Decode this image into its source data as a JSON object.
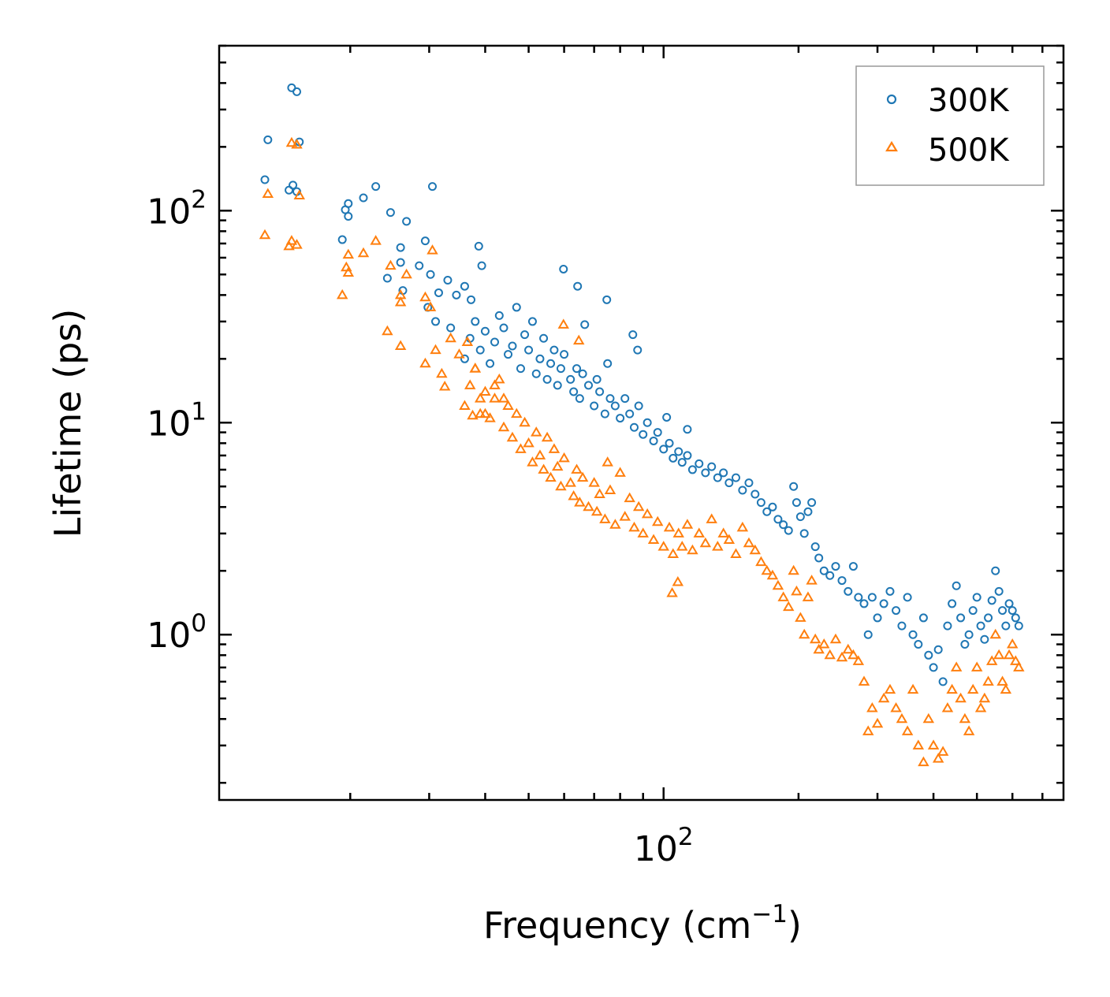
{
  "chart_data": {
    "type": "scatter",
    "title": "",
    "xlabel": "Frequency (cm",
    "xlabel_sup": "−1",
    "xlabel_end": ")",
    "ylabel": "Lifetime (ps)",
    "xscale": "log",
    "yscale": "log",
    "xlim": [
      10.2,
      780
    ],
    "ylim": [
      0.166,
      600
    ],
    "grid": false,
    "legend_position": "top-right",
    "xticks": [
      {
        "value": 100,
        "base": "10",
        "exp": "2"
      }
    ],
    "yticks": [
      {
        "value": 1,
        "base": "10",
        "exp": "0"
      },
      {
        "value": 10,
        "base": "10",
        "exp": "1"
      },
      {
        "value": 100,
        "base": "10",
        "exp": "2"
      }
    ],
    "series": [
      {
        "name": "300K",
        "color": "#1f77b4",
        "marker": "circle",
        "points": [
          [
            14.8,
            380
          ],
          [
            15.2,
            364
          ],
          [
            13.1,
            216
          ],
          [
            15.4,
            211
          ],
          [
            12.9,
            140
          ],
          [
            14.6,
            125
          ],
          [
            14.9,
            132
          ],
          [
            15.2,
            123
          ],
          [
            19.5,
            101
          ],
          [
            19.8,
            108
          ],
          [
            19.8,
            94
          ],
          [
            21.4,
            115
          ],
          [
            22.8,
            130
          ],
          [
            24.6,
            98
          ],
          [
            26.7,
            89
          ],
          [
            30.5,
            130
          ],
          [
            19.2,
            73
          ],
          [
            25.9,
            67
          ],
          [
            25.9,
            57
          ],
          [
            29.4,
            72
          ],
          [
            38.7,
            68
          ],
          [
            39.3,
            55
          ],
          [
            59.8,
            53
          ],
          [
            64.3,
            44
          ],
          [
            66.7,
            29
          ],
          [
            74.7,
            38
          ],
          [
            85.4,
            26
          ],
          [
            87.5,
            22
          ],
          [
            101.6,
            10.6
          ],
          [
            113,
            9.3
          ],
          [
            24.2,
            48
          ],
          [
            26.2,
            42
          ],
          [
            28.5,
            55
          ],
          [
            30.2,
            50
          ],
          [
            31.5,
            41
          ],
          [
            33,
            47
          ],
          [
            34.5,
            40
          ],
          [
            36,
            44
          ],
          [
            37.2,
            38
          ],
          [
            29.8,
            35
          ],
          [
            31,
            30
          ],
          [
            33.5,
            28
          ],
          [
            36,
            20
          ],
          [
            37,
            25
          ],
          [
            38,
            30
          ],
          [
            39,
            22
          ],
          [
            40,
            27
          ],
          [
            41,
            19
          ],
          [
            42,
            24
          ],
          [
            43,
            32
          ],
          [
            44,
            28
          ],
          [
            45,
            21
          ],
          [
            46,
            23
          ],
          [
            47,
            35
          ],
          [
            48,
            18
          ],
          [
            49,
            26
          ],
          [
            50,
            22
          ],
          [
            51,
            30
          ],
          [
            52,
            17
          ],
          [
            53,
            20
          ],
          [
            54,
            25
          ],
          [
            55,
            16
          ],
          [
            56,
            19
          ],
          [
            57,
            22
          ],
          [
            58,
            15
          ],
          [
            59,
            18
          ],
          [
            60,
            21
          ],
          [
            62,
            16
          ],
          [
            63,
            14
          ],
          [
            64,
            18
          ],
          [
            65,
            13
          ],
          [
            66,
            17
          ],
          [
            68,
            15
          ],
          [
            70,
            12
          ],
          [
            71,
            16
          ],
          [
            72,
            14
          ],
          [
            74,
            11
          ],
          [
            75,
            19
          ],
          [
            76,
            13
          ],
          [
            78,
            12
          ],
          [
            80,
            10.5
          ],
          [
            82,
            13
          ],
          [
            84,
            11
          ],
          [
            86,
            9.5
          ],
          [
            88,
            12
          ],
          [
            90,
            8.8
          ],
          [
            92,
            10
          ],
          [
            95,
            8.2
          ],
          [
            97,
            9
          ],
          [
            100,
            7.5
          ],
          [
            103,
            8
          ],
          [
            105,
            6.8
          ],
          [
            108,
            7.3
          ],
          [
            110,
            6.5
          ],
          [
            113,
            7
          ],
          [
            116,
            6
          ],
          [
            120,
            6.4
          ],
          [
            124,
            5.8
          ],
          [
            128,
            6.2
          ],
          [
            132,
            5.5
          ],
          [
            136,
            5.8
          ],
          [
            140,
            5.2
          ],
          [
            145,
            5.5
          ],
          [
            150,
            4.8
          ],
          [
            155,
            5.2
          ],
          [
            160,
            4.6
          ],
          [
            165,
            4.2
          ],
          [
            170,
            3.8
          ],
          [
            175,
            4.0
          ],
          [
            180,
            3.5
          ],
          [
            185,
            3.3
          ],
          [
            190,
            3.1
          ],
          [
            195,
            5.0
          ],
          [
            198,
            4.2
          ],
          [
            202,
            3.6
          ],
          [
            206,
            3.0
          ],
          [
            210,
            3.8
          ],
          [
            214,
            4.2
          ],
          [
            218,
            2.6
          ],
          [
            222,
            2.3
          ],
          [
            228,
            2.0
          ],
          [
            235,
            1.9
          ],
          [
            242,
            2.1
          ],
          [
            250,
            1.8
          ],
          [
            258,
            1.6
          ],
          [
            265,
            2.1
          ],
          [
            272,
            1.5
          ],
          [
            280,
            1.4
          ],
          [
            286,
            1.0
          ],
          [
            292,
            1.5
          ],
          [
            300,
            1.2
          ],
          [
            310,
            1.4
          ],
          [
            320,
            1.6
          ],
          [
            330,
            1.3
          ],
          [
            340,
            1.1
          ],
          [
            350,
            1.5
          ],
          [
            360,
            1.0
          ],
          [
            370,
            0.9
          ],
          [
            380,
            1.2
          ],
          [
            390,
            0.8
          ],
          [
            400,
            0.7
          ],
          [
            410,
            0.85
          ],
          [
            420,
            0.6
          ],
          [
            430,
            1.1
          ],
          [
            440,
            1.4
          ],
          [
            450,
            1.7
          ],
          [
            460,
            1.2
          ],
          [
            470,
            0.9
          ],
          [
            480,
            1.0
          ],
          [
            490,
            1.3
          ],
          [
            500,
            1.5
          ],
          [
            510,
            1.1
          ],
          [
            520,
            0.95
          ],
          [
            530,
            1.2
          ],
          [
            540,
            1.45
          ],
          [
            550,
            2.0
          ],
          [
            560,
            1.6
          ],
          [
            570,
            1.3
          ],
          [
            580,
            1.1
          ],
          [
            590,
            1.4
          ],
          [
            600,
            1.3
          ],
          [
            610,
            1.2
          ],
          [
            620,
            1.1
          ]
        ]
      },
      {
        "name": "500K",
        "color": "#ff7f0e",
        "marker": "triangle",
        "points": [
          [
            12.9,
            76.7
          ],
          [
            13.1,
            120
          ],
          [
            14.8,
            209
          ],
          [
            15.2,
            205
          ],
          [
            14.8,
            72
          ],
          [
            15.2,
            69
          ],
          [
            14.6,
            68
          ],
          [
            15.4,
            118
          ],
          [
            19.2,
            40
          ],
          [
            19.8,
            62
          ],
          [
            19.6,
            54
          ],
          [
            19.8,
            51
          ],
          [
            21.4,
            63
          ],
          [
            22.8,
            72
          ],
          [
            24.6,
            55
          ],
          [
            26.7,
            50
          ],
          [
            25.9,
            40
          ],
          [
            25.9,
            37
          ],
          [
            25.9,
            23
          ],
          [
            24.2,
            27
          ],
          [
            29.4,
            39
          ],
          [
            30.5,
            65
          ],
          [
            30.2,
            35
          ],
          [
            29.4,
            19
          ],
          [
            32.5,
            14.8
          ],
          [
            37.5,
            10.8
          ],
          [
            59.8,
            29
          ],
          [
            64.7,
            24.4
          ],
          [
            104.5,
            1.57
          ],
          [
            107.6,
            1.77
          ],
          [
            31,
            22
          ],
          [
            32,
            17
          ],
          [
            33.5,
            25
          ],
          [
            35,
            21
          ],
          [
            36.5,
            24
          ],
          [
            38,
            18
          ],
          [
            39,
            13
          ],
          [
            40,
            11
          ],
          [
            42,
            15
          ],
          [
            44,
            13
          ],
          [
            36,
            12
          ],
          [
            37,
            15
          ],
          [
            38,
            18
          ],
          [
            39,
            11
          ],
          [
            40,
            14
          ],
          [
            41,
            10.5
          ],
          [
            42,
            13
          ],
          [
            43,
            16
          ],
          [
            44,
            9.5
          ],
          [
            45,
            12
          ],
          [
            46,
            8.5
          ],
          [
            47,
            11
          ],
          [
            48,
            7.5
          ],
          [
            49,
            10
          ],
          [
            50,
            8
          ],
          [
            51,
            6.5
          ],
          [
            52,
            9
          ],
          [
            53,
            7
          ],
          [
            54,
            6
          ],
          [
            55,
            8.5
          ],
          [
            56,
            5.5
          ],
          [
            57,
            7.5
          ],
          [
            58,
            6.2
          ],
          [
            59,
            5
          ],
          [
            60,
            6.8
          ],
          [
            62,
            5.2
          ],
          [
            63,
            4.5
          ],
          [
            64,
            6
          ],
          [
            65,
            4.2
          ],
          [
            66,
            5.5
          ],
          [
            68,
            4.0
          ],
          [
            70,
            5.2
          ],
          [
            71,
            3.8
          ],
          [
            72,
            4.6
          ],
          [
            74,
            3.5
          ],
          [
            75,
            6.5
          ],
          [
            76,
            4.8
          ],
          [
            78,
            3.3
          ],
          [
            80,
            5.8
          ],
          [
            82,
            3.6
          ],
          [
            84,
            4.4
          ],
          [
            86,
            3.2
          ],
          [
            88,
            4.0
          ],
          [
            90,
            3.0
          ],
          [
            92,
            3.7
          ],
          [
            95,
            2.8
          ],
          [
            97,
            3.4
          ],
          [
            100,
            2.6
          ],
          [
            103,
            3.2
          ],
          [
            105,
            2.4
          ],
          [
            108,
            3.0
          ],
          [
            110,
            2.6
          ],
          [
            113,
            3.3
          ],
          [
            116,
            2.5
          ],
          [
            120,
            3.0
          ],
          [
            124,
            2.7
          ],
          [
            128,
            3.5
          ],
          [
            132,
            2.6
          ],
          [
            136,
            3.0
          ],
          [
            140,
            2.8
          ],
          [
            145,
            2.4
          ],
          [
            150,
            3.2
          ],
          [
            155,
            2.7
          ],
          [
            160,
            2.5
          ],
          [
            165,
            2.2
          ],
          [
            170,
            2.0
          ],
          [
            175,
            1.9
          ],
          [
            180,
            1.7
          ],
          [
            185,
            1.5
          ],
          [
            190,
            1.35
          ],
          [
            195,
            2.0
          ],
          [
            198,
            1.6
          ],
          [
            202,
            1.2
          ],
          [
            206,
            1.0
          ],
          [
            210,
            1.5
          ],
          [
            214,
            1.8
          ],
          [
            218,
            0.95
          ],
          [
            222,
            0.85
          ],
          [
            228,
            0.9
          ],
          [
            235,
            0.8
          ],
          [
            242,
            0.95
          ],
          [
            250,
            0.78
          ],
          [
            258,
            0.85
          ],
          [
            265,
            0.8
          ],
          [
            272,
            0.75
          ],
          [
            280,
            0.6
          ],
          [
            286,
            0.35
          ],
          [
            292,
            0.45
          ],
          [
            300,
            0.38
          ],
          [
            310,
            0.5
          ],
          [
            320,
            0.55
          ],
          [
            330,
            0.45
          ],
          [
            340,
            0.4
          ],
          [
            350,
            0.35
          ],
          [
            360,
            0.55
          ],
          [
            370,
            0.3
          ],
          [
            380,
            0.25
          ],
          [
            390,
            0.4
          ],
          [
            400,
            0.3
          ],
          [
            410,
            0.26
          ],
          [
            420,
            0.28
          ],
          [
            430,
            0.45
          ],
          [
            440,
            0.55
          ],
          [
            450,
            0.7
          ],
          [
            460,
            0.5
          ],
          [
            470,
            0.4
          ],
          [
            480,
            0.35
          ],
          [
            490,
            0.55
          ],
          [
            500,
            0.7
          ],
          [
            510,
            0.45
          ],
          [
            520,
            0.5
          ],
          [
            530,
            0.6
          ],
          [
            540,
            0.75
          ],
          [
            550,
            1.0
          ],
          [
            560,
            0.8
          ],
          [
            570,
            0.6
          ],
          [
            580,
            0.55
          ],
          [
            590,
            0.8
          ],
          [
            600,
            0.9
          ],
          [
            610,
            0.75
          ],
          [
            620,
            0.7
          ]
        ]
      }
    ]
  }
}
